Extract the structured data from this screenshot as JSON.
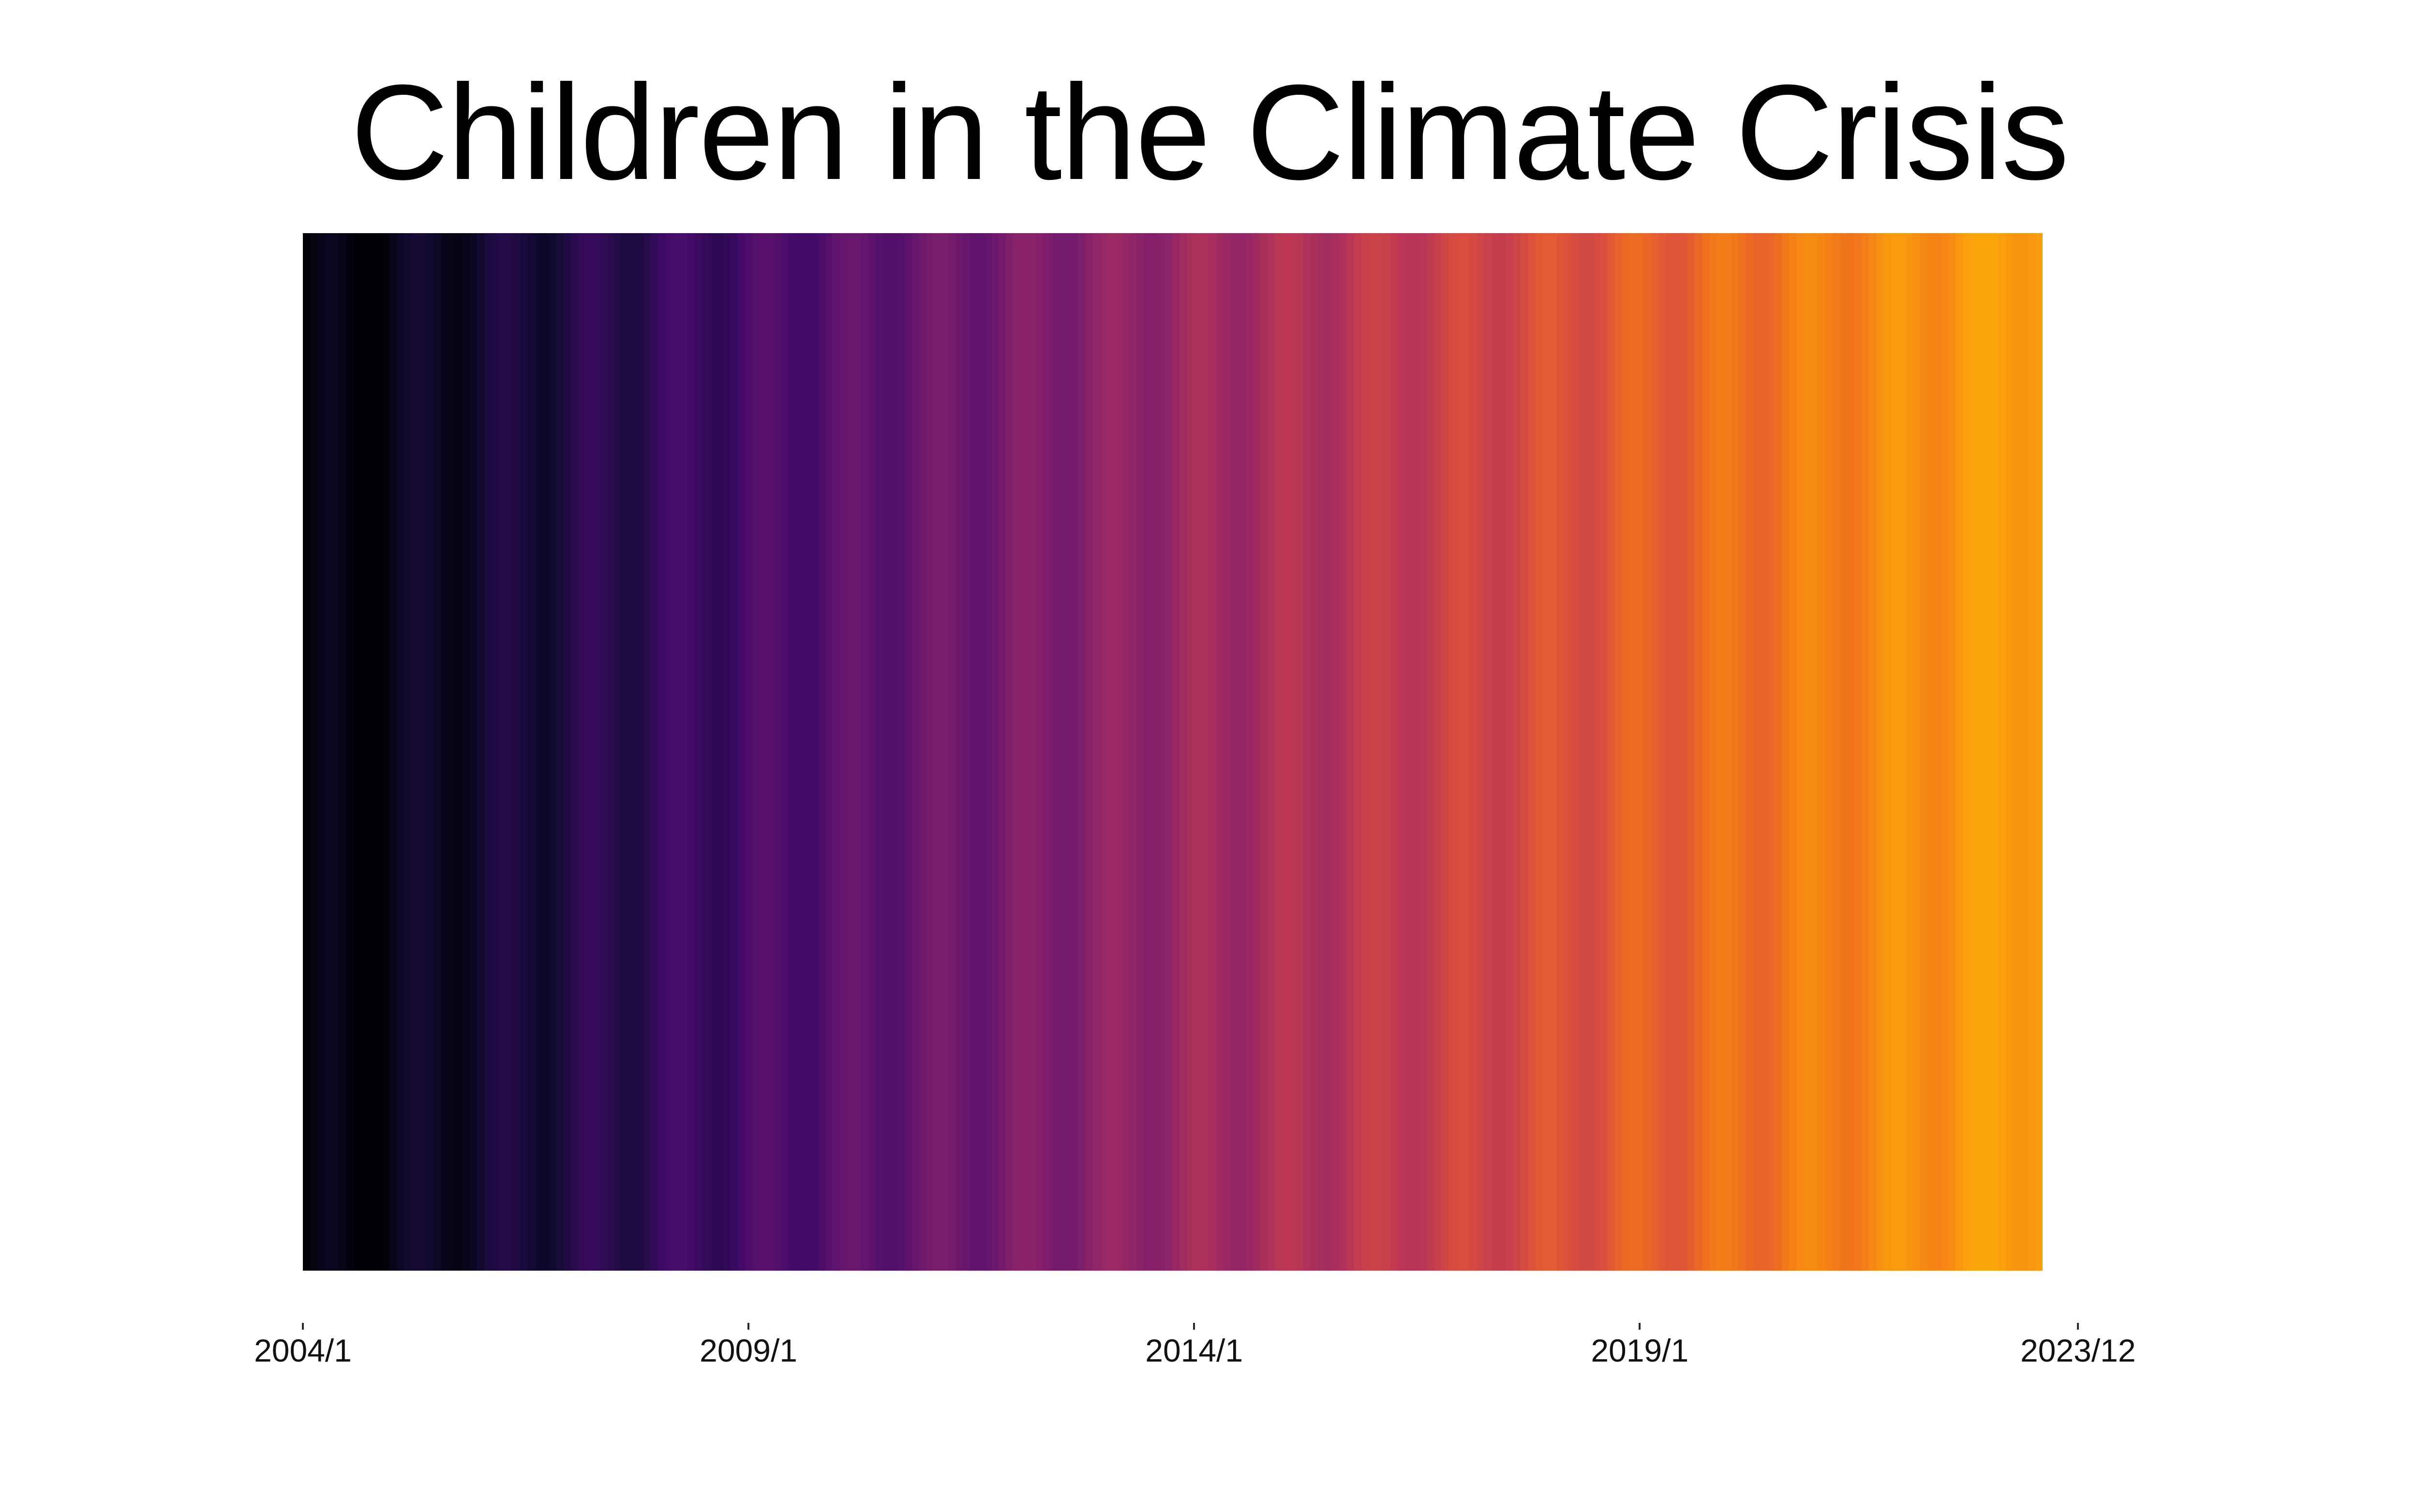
{
  "page": {
    "background": "#ffffff"
  },
  "title": {
    "text": "Children in the Climate Crisis",
    "color": "#000000"
  },
  "axis": {
    "tick_color": "#2b2b2b",
    "label_color": "#111111"
  },
  "chart_data": {
    "type": "heatmap",
    "title": "Children in the Climate Crisis",
    "description": "Warming-stripes style chart: one vertical stripe per month from 2004/1 to 2023/12, colored by relative warming intensity (0 = coolest, 1 = warmest) on an inferno-style colormap running black - purple - magenta - red - orange.",
    "x_start": "2004/1",
    "x_end": "2023/12",
    "n_stripes": 240,
    "xlabel": "",
    "ylabel": "",
    "grid": false,
    "legend": "none",
    "xticks": [
      {
        "label": "2004/1",
        "pos": 0.0
      },
      {
        "label": "2009/1",
        "pos": 0.256
      },
      {
        "label": "2014/1",
        "pos": 0.512
      },
      {
        "label": "2019/1",
        "pos": 0.768
      },
      {
        "label": "2023/12",
        "pos": 1.0198
      }
    ],
    "colormap": {
      "name": "inferno-like (truncated at bright orange)",
      "stops": [
        [
          0.0,
          "#000004"
        ],
        [
          0.122,
          "#160b39"
        ],
        [
          0.244,
          "#420a68"
        ],
        [
          0.366,
          "#6a176e"
        ],
        [
          0.488,
          "#932667"
        ],
        [
          0.61,
          "#bc3754"
        ],
        [
          0.732,
          "#dd513a"
        ],
        [
          0.854,
          "#f37819"
        ],
        [
          1.0,
          "#fca50a"
        ]
      ]
    },
    "values": [
      0.0,
      0.029,
      0.051,
      0.063,
      0.06,
      0.046,
      0.025,
      0.004,
      0.0,
      0.0,
      0.0,
      0.021,
      0.05,
      0.079,
      0.102,
      0.113,
      0.11,
      0.096,
      0.075,
      0.054,
      0.041,
      0.038,
      0.049,
      0.071,
      0.1,
      0.13,
      0.152,
      0.163,
      0.16,
      0.146,
      0.126,
      0.105,
      0.091,
      0.088,
      0.099,
      0.121,
      0.151,
      0.18,
      0.202,
      0.213,
      0.21,
      0.197,
      0.176,
      0.155,
      0.141,
      0.138,
      0.149,
      0.172,
      0.201,
      0.23,
      0.252,
      0.263,
      0.261,
      0.247,
      0.226,
      0.205,
      0.191,
      0.188,
      0.2,
      0.222,
      0.251,
      0.28,
      0.302,
      0.314,
      0.311,
      0.297,
      0.276,
      0.255,
      0.242,
      0.239,
      0.25,
      0.272,
      0.301,
      0.33,
      0.353,
      0.364,
      0.361,
      0.347,
      0.326,
      0.306,
      0.292,
      0.289,
      0.3,
      0.322,
      0.351,
      0.381,
      0.403,
      0.414,
      0.411,
      0.397,
      0.377,
      0.356,
      0.342,
      0.339,
      0.35,
      0.372,
      0.402,
      0.431,
      0.453,
      0.464,
      0.461,
      0.448,
      0.427,
      0.406,
      0.392,
      0.389,
      0.401,
      0.423,
      0.452,
      0.481,
      0.503,
      0.514,
      0.512,
      0.498,
      0.477,
      0.456,
      0.442,
      0.44,
      0.451,
      0.473,
      0.502,
      0.531,
      0.553,
      0.565,
      0.562,
      0.548,
      0.527,
      0.506,
      0.493,
      0.49,
      0.501,
      0.523,
      0.552,
      0.581,
      0.604,
      0.615,
      0.612,
      0.598,
      0.577,
      0.557,
      0.543,
      0.54,
      0.551,
      0.573,
      0.603,
      0.632,
      0.654,
      0.665,
      0.662,
      0.648,
      0.628,
      0.607,
      0.593,
      0.59,
      0.601,
      0.624,
      0.653,
      0.682,
      0.704,
      0.715,
      0.712,
      0.699,
      0.678,
      0.657,
      0.643,
      0.64,
      0.652,
      0.674,
      0.703,
      0.732,
      0.754,
      0.765,
      0.763,
      0.749,
      0.728,
      0.707,
      0.693,
      0.691,
      0.702,
      0.724,
      0.753,
      0.782,
      0.805,
      0.816,
      0.813,
      0.799,
      0.778,
      0.757,
      0.744,
      0.741,
      0.752,
      0.774,
      0.803,
      0.833,
      0.855,
      0.866,
      0.863,
      0.849,
      0.828,
      0.808,
      0.794,
      0.791,
      0.802,
      0.824,
      0.854,
      0.883,
      0.905,
      0.916,
      0.913,
      0.899,
      0.879,
      0.858,
      0.844,
      0.841,
      0.852,
      0.875,
      0.904,
      0.933,
      0.955,
      0.966,
      0.963,
      0.95,
      0.929,
      0.908,
      0.894,
      0.891,
      0.903,
      0.925,
      0.954,
      0.983,
      1.0,
      1.0,
      1.0,
      1.0,
      0.979,
      0.958,
      0.944,
      0.942,
      0.953,
      0.975
    ]
  }
}
